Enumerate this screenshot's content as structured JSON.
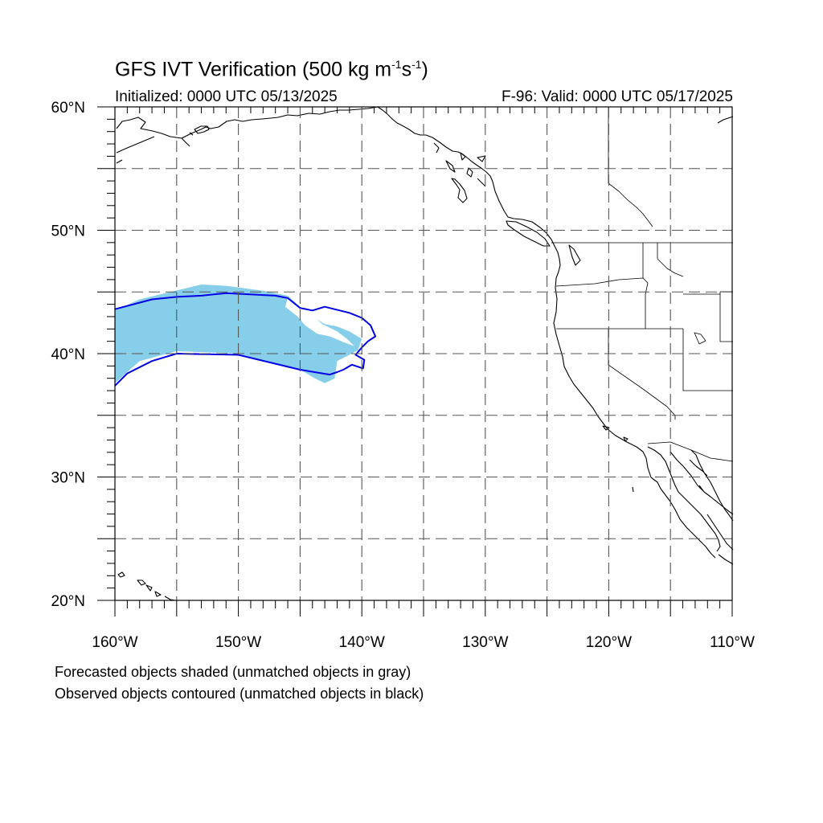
{
  "title": {
    "main": "GFS IVT Verification (500 kg m",
    "exp1": "-1",
    "mid": "s",
    "exp2": "-1",
    "end": ")"
  },
  "initialized": "Initialized: 0000 UTC 05/13/2025",
  "valid": "F-96: Valid: 0000 UTC 05/17/2025",
  "lat_labels": [
    "60°N",
    "50°N",
    "40°N",
    "30°N",
    "20°N"
  ],
  "lon_labels": [
    "160°W",
    "150°W",
    "140°W",
    "130°W",
    "120°W",
    "110°W"
  ],
  "notes": [
    "Forecasted objects shaded (unmatched objects in gray)",
    "Observed objects contoured (unmatched objects in black)"
  ],
  "colors": {
    "forecast_fill": "#87ceeb",
    "observed_contour": "#0000e6",
    "coastline": "#000000",
    "grid": "#555555"
  },
  "map_extent": {
    "lon": [
      -160,
      -110
    ],
    "lat": [
      20,
      60
    ]
  },
  "objects": {
    "forecast": [
      [
        -160,
        43.5
      ],
      [
        -158,
        44.4
      ],
      [
        -153,
        45.6
      ],
      [
        -151,
        45.5
      ],
      [
        -148,
        45.1
      ],
      [
        -146,
        44.7
      ],
      [
        -145,
        43.8
      ],
      [
        -144,
        43.0
      ],
      [
        -143,
        42.4
      ],
      [
        -142,
        42.2
      ],
      [
        -141,
        41.8
      ],
      [
        -140,
        41.2
      ],
      [
        -140.3,
        40.3
      ],
      [
        -141,
        39.9
      ],
      [
        -142,
        39.4
      ],
      [
        -142.2,
        38.0
      ],
      [
        -143,
        37.6
      ],
      [
        -143.8,
        38.0
      ],
      [
        -145,
        38.7
      ],
      [
        -150,
        40.0
      ],
      [
        -155,
        40.2
      ],
      [
        -158,
        39.4
      ],
      [
        -160,
        37.6
      ]
    ],
    "observed": [
      [
        -160,
        43.6
      ],
      [
        -157,
        44.4
      ],
      [
        -155,
        44.6
      ],
      [
        -153,
        44.7
      ],
      [
        -151,
        44.9
      ],
      [
        -147,
        44.7
      ],
      [
        -146,
        44.5
      ],
      [
        -145,
        43.7
      ],
      [
        -144,
        43.5
      ],
      [
        -143,
        43.8
      ],
      [
        -141,
        43.3
      ],
      [
        -140,
        42.9
      ],
      [
        -139.3,
        42.3
      ],
      [
        -138.9,
        41.4
      ],
      [
        -139.5,
        41.0
      ],
      [
        -140.0,
        40.5
      ],
      [
        -140.5,
        39.9
      ],
      [
        -139.8,
        39.5
      ],
      [
        -139.9,
        38.8
      ],
      [
        -140.8,
        39.1
      ],
      [
        -141.5,
        38.7
      ],
      [
        -142.0,
        38.5
      ],
      [
        -142.6,
        38.3
      ],
      [
        -145,
        38.7
      ],
      [
        -150,
        39.9
      ],
      [
        -155,
        40.0
      ],
      [
        -157,
        39.4
      ],
      [
        -159,
        38.4
      ],
      [
        -160,
        37.4
      ]
    ]
  }
}
